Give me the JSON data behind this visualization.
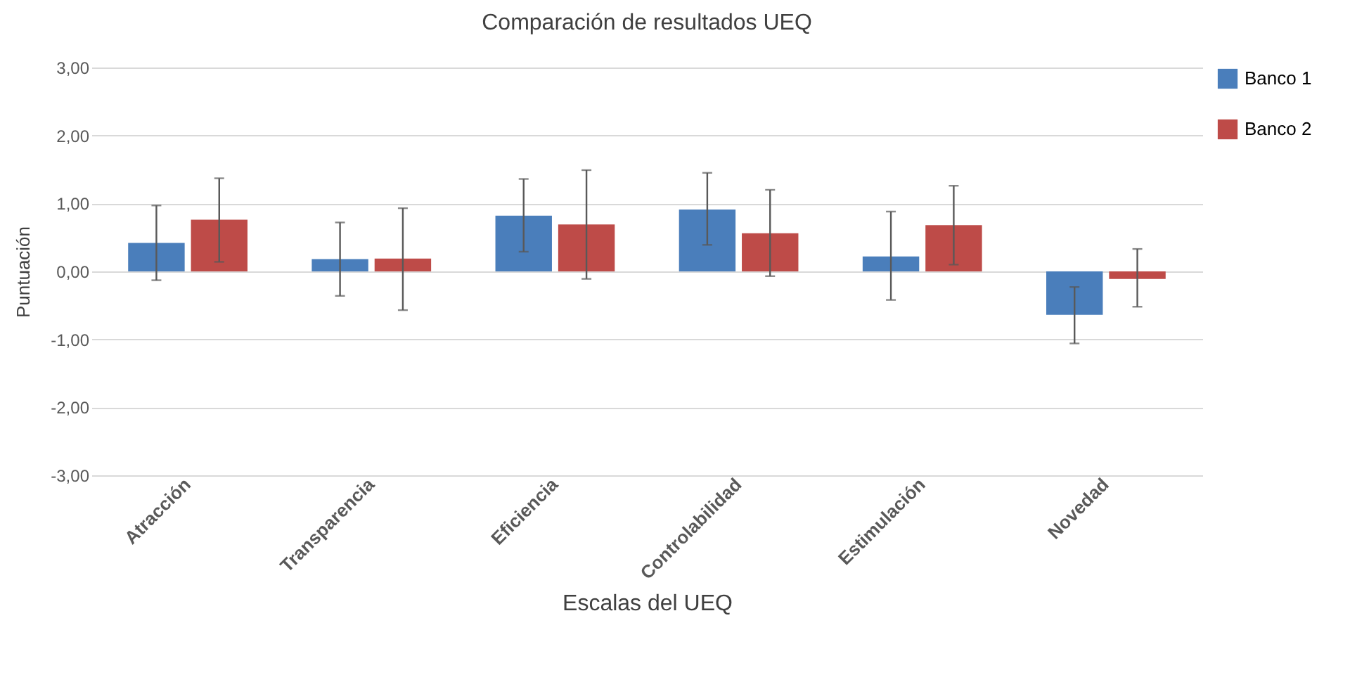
{
  "chart_data": {
    "type": "bar",
    "title": "Comparación de resultados UEQ",
    "xlabel": "Escalas del UEQ",
    "ylabel": "Puntuación",
    "categories": [
      "Atracción",
      "Transparencia",
      "Eficiencia",
      "Controlabilidad",
      "Estimulación",
      "Novedad"
    ],
    "series": [
      {
        "name": "Banco 1",
        "color": "#4a7ebb",
        "values": [
          0.42,
          0.18,
          0.82,
          0.91,
          0.22,
          -0.64
        ],
        "errors": [
          [
            -0.13,
            0.97
          ],
          [
            -0.36,
            0.72
          ],
          [
            0.29,
            1.36
          ],
          [
            0.39,
            1.45
          ],
          [
            -0.42,
            0.88
          ],
          [
            -1.06,
            -0.23
          ]
        ]
      },
      {
        "name": "Banco 2",
        "color": "#be4b48",
        "values": [
          0.76,
          0.19,
          0.69,
          0.56,
          0.68,
          -0.11
        ],
        "errors": [
          [
            0.14,
            1.37
          ],
          [
            -0.57,
            0.93
          ],
          [
            -0.11,
            1.49
          ],
          [
            -0.07,
            1.2
          ],
          [
            0.1,
            1.26
          ],
          [
            -0.52,
            0.33
          ]
        ]
      }
    ],
    "ylim": [
      -3,
      3
    ],
    "yticks": [
      {
        "value": -3,
        "label": "-3,00"
      },
      {
        "value": -2,
        "label": "-2,00"
      },
      {
        "value": -1,
        "label": "-1,00"
      },
      {
        "value": 0,
        "label": "0,00"
      },
      {
        "value": 1,
        "label": "1,00"
      },
      {
        "value": 2,
        "label": "2,00"
      },
      {
        "value": 3,
        "label": "3,00"
      }
    ],
    "grid": "y",
    "legend": "right"
  }
}
